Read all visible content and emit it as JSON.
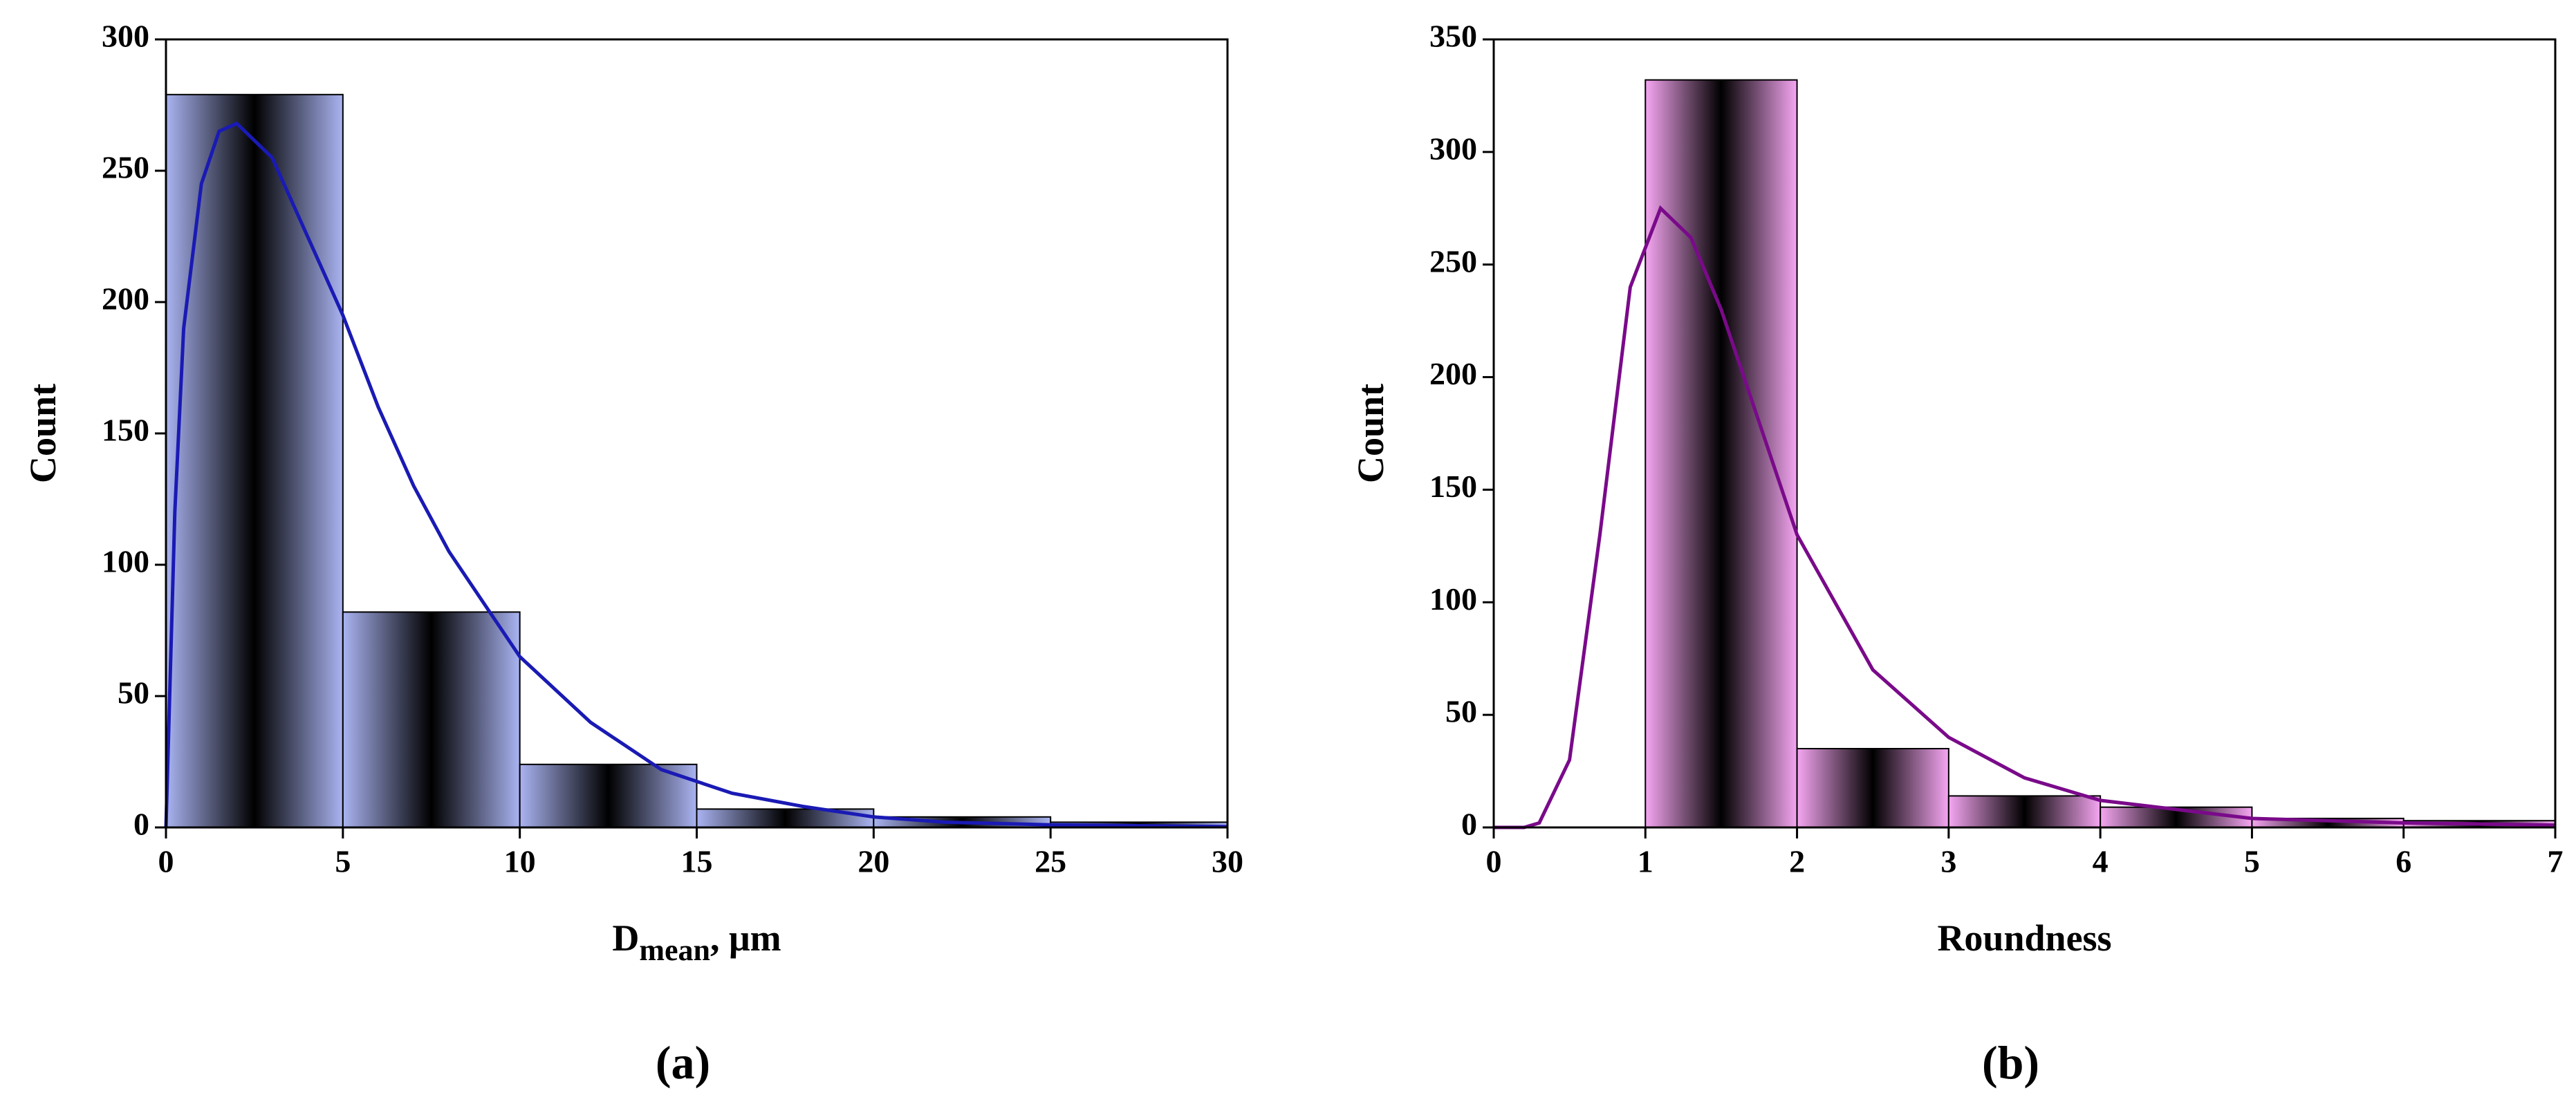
{
  "chart_data": [
    {
      "type": "histogram",
      "panel_label": "(a)",
      "ylabel": "Count",
      "xlabel": "D",
      "xlabel_sub": "mean",
      "xlabel_suffix": ", μm",
      "bins": [
        0,
        5,
        10,
        15,
        20,
        25,
        30
      ],
      "counts": [
        279,
        82,
        24,
        7,
        4,
        2
      ],
      "color": "#aab4f2",
      "fit": {
        "color": "#1a1ab4",
        "x": [
          0,
          0.25,
          0.5,
          1,
          1.5,
          2,
          3,
          4,
          5,
          6,
          7,
          8,
          10,
          12,
          14,
          16,
          18,
          20,
          22,
          25,
          30
        ],
        "values": [
          0,
          120,
          190,
          245,
          265,
          268,
          255,
          225,
          195,
          160,
          130,
          105,
          65,
          40,
          22,
          13,
          8,
          4,
          2,
          1,
          0.3
        ]
      },
      "xlim": [
        0,
        30
      ],
      "xticks": [
        0,
        5,
        10,
        15,
        20,
        25,
        30
      ],
      "ylim": [
        0,
        300
      ],
      "yticks": [
        0,
        50,
        100,
        150,
        200,
        250,
        300
      ]
    },
    {
      "type": "histogram",
      "panel_label": "(b)",
      "ylabel": "Count",
      "xlabel": "Roundness",
      "bins": [
        1,
        2,
        3,
        4,
        5,
        6,
        7
      ],
      "counts": [
        332,
        35,
        14,
        9,
        4,
        3
      ],
      "color": "#f6a6f2",
      "fit": {
        "color": "#7a0a8a",
        "x": [
          0,
          0.2,
          0.3,
          0.5,
          0.7,
          0.9,
          1.1,
          1.3,
          1.5,
          1.8,
          2,
          2.5,
          3,
          3.5,
          4,
          5,
          6,
          7
        ],
        "values": [
          0,
          0,
          2,
          30,
          130,
          240,
          275,
          262,
          230,
          170,
          130,
          70,
          40,
          22,
          12,
          4,
          2,
          1
        ]
      },
      "xlim": [
        0,
        7
      ],
      "xticks": [
        0,
        1,
        2,
        3,
        4,
        5,
        6,
        7
      ],
      "ylim": [
        0,
        350
      ],
      "yticks": [
        0,
        50,
        100,
        150,
        200,
        250,
        300,
        350
      ]
    }
  ]
}
